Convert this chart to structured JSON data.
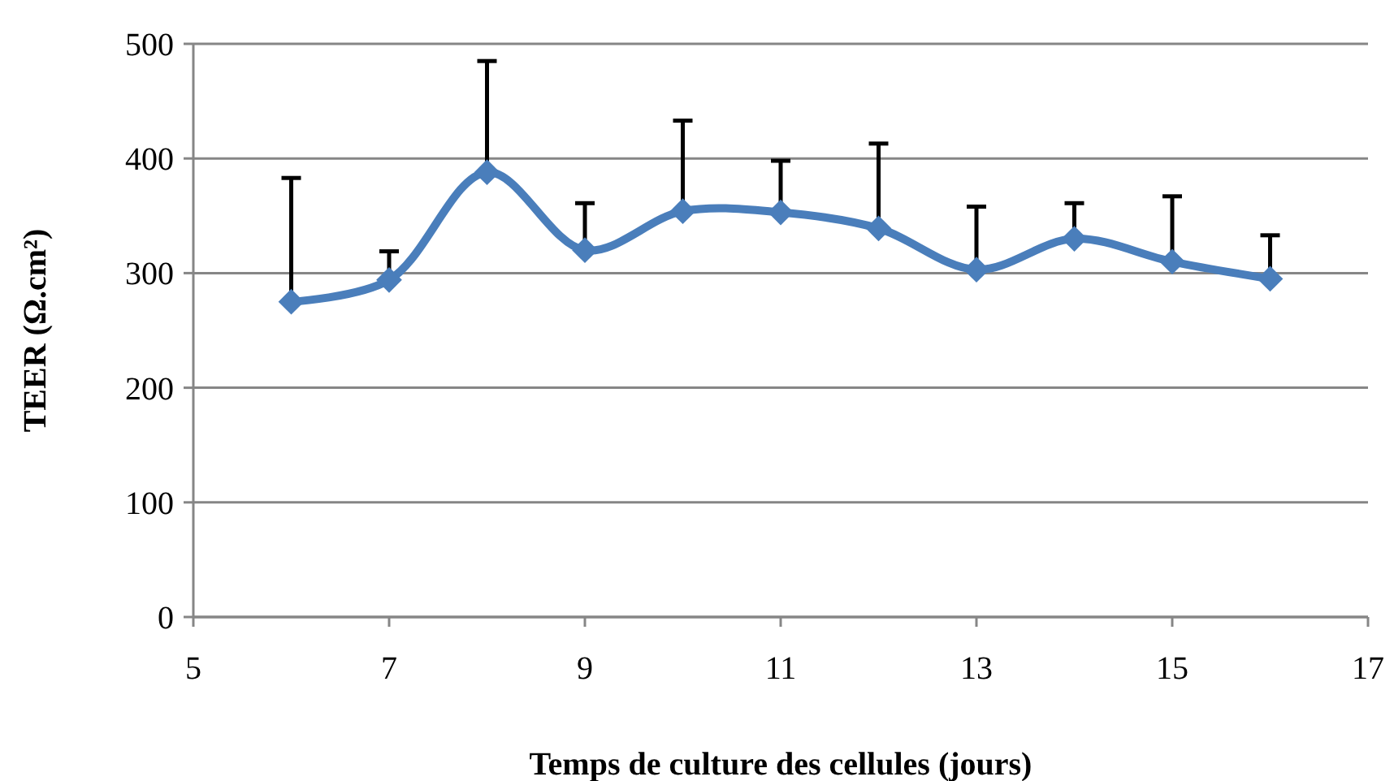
{
  "chart_data": {
    "type": "line",
    "xlabel": "Temps de culture des cellules (jours)",
    "ylabel": "TEER (Ω.cm²)",
    "x": [
      6,
      7,
      8,
      9,
      10,
      11,
      12,
      13,
      14,
      15,
      16
    ],
    "series": [
      {
        "color": "#4a7ebb",
        "values": [
          275,
          294,
          388,
          320,
          354,
          353,
          339,
          303,
          330,
          310,
          295
        ],
        "errors": [
          [
            275,
            383
          ],
          [
            294,
            319
          ],
          [
            388,
            485
          ],
          [
            320,
            361
          ],
          [
            354,
            433
          ],
          [
            353,
            398
          ],
          [
            339,
            413
          ],
          [
            303,
            358
          ],
          [
            330,
            361
          ],
          [
            310,
            367
          ],
          [
            295,
            333
          ]
        ]
      }
    ],
    "xlim": [
      5,
      17
    ],
    "xticks": [
      5,
      7,
      9,
      11,
      13,
      15,
      17
    ],
    "ylim": [
      0,
      500
    ],
    "yticks": [
      0,
      100,
      200,
      300,
      400,
      500
    ],
    "grid": "y",
    "marker": "diamond",
    "line_style": "solid"
  }
}
